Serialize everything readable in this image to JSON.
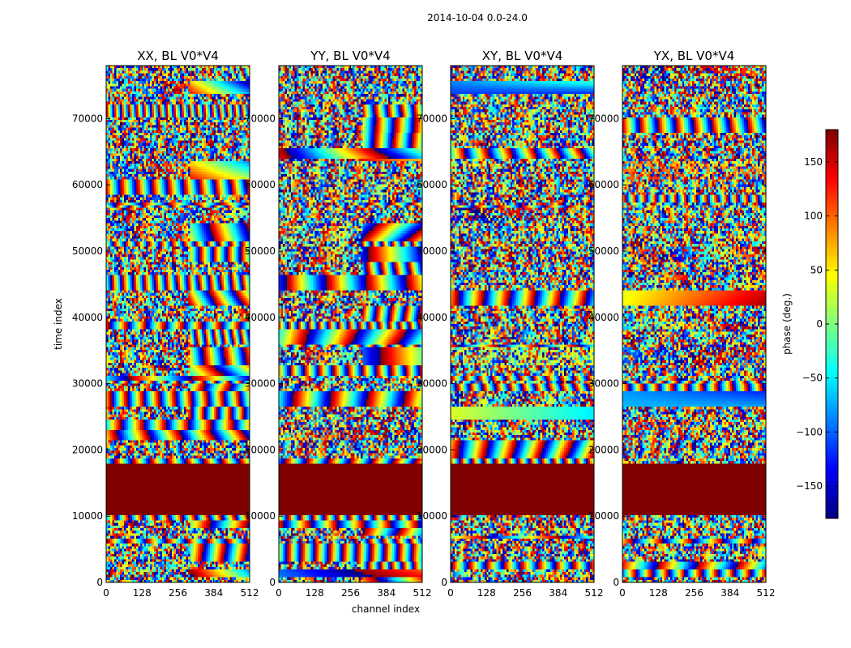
{
  "chart_data": {
    "type": "heatmap",
    "title": "2014-10-04 0.0-24.0",
    "xlabel": "channel index",
    "ylabel": "time index",
    "xlim": [
      0,
      512
    ],
    "ylim": [
      0,
      78000
    ],
    "xticks": [
      0,
      128,
      256,
      384,
      512
    ],
    "yticks": [
      0,
      10000,
      20000,
      30000,
      40000,
      50000,
      60000,
      70000
    ],
    "flagged_time_range": [
      10200,
      17800
    ],
    "flagged_phase_value": 180,
    "panels": [
      {
        "title": "XX, BL V0*V4"
      },
      {
        "title": "YY, BL V0*V4"
      },
      {
        "title": "XY, BL V0*V4"
      },
      {
        "title": "YX, BL V0*V4"
      }
    ],
    "colorbar": {
      "label": "phase (deg.)",
      "vmin": -180,
      "vmax": 180,
      "ticks": [
        -150,
        -100,
        -50,
        0,
        50,
        100,
        150
      ],
      "tick_labels": [
        "−150",
        "−100",
        "−50",
        "0",
        "50",
        "100",
        "150"
      ],
      "colormap": "jet"
    }
  }
}
